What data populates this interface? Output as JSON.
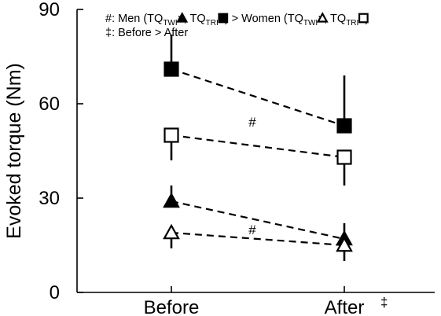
{
  "chart_data": {
    "type": "line",
    "title": "",
    "xlabel": "",
    "ylabel": "Evoked torque (Nm)",
    "categories": [
      "Before",
      "After"
    ],
    "category_annotations": [
      "",
      "‡"
    ],
    "ylim": [
      0,
      90
    ],
    "yticks": [
      0,
      30,
      60,
      90
    ],
    "series": [
      {
        "marker": "filled-square",
        "values": [
          71,
          53
        ],
        "err_up": [
          11,
          16
        ],
        "err_down": [
          0,
          0
        ]
      },
      {
        "marker": "open-square",
        "values": [
          50,
          43
        ],
        "err_up": [
          0,
          0
        ],
        "err_down": [
          8,
          9
        ]
      },
      {
        "marker": "filled-triangle",
        "values": [
          29,
          17
        ],
        "err_up": [
          5,
          5
        ],
        "err_down": [
          0,
          0
        ]
      },
      {
        "marker": "open-triangle",
        "values": [
          19,
          15
        ],
        "err_up": [
          0,
          0
        ],
        "err_down": [
          5,
          5
        ]
      }
    ],
    "annotations": [
      {
        "text": "#",
        "between": "squares"
      },
      {
        "text": "#",
        "between": "triangles"
      }
    ],
    "legend": {
      "position": "top",
      "line1": {
        "prefix": "#: Men (TQ",
        "twi_sub": "TWI",
        "sep": ":",
        "mid": ", TQ",
        "tri_sub": "TRI",
        "sep2": ":",
        "after_men": ") > Women (TQ",
        "close": ")"
      },
      "line2": "‡: Before > After"
    },
    "grid": false
  }
}
